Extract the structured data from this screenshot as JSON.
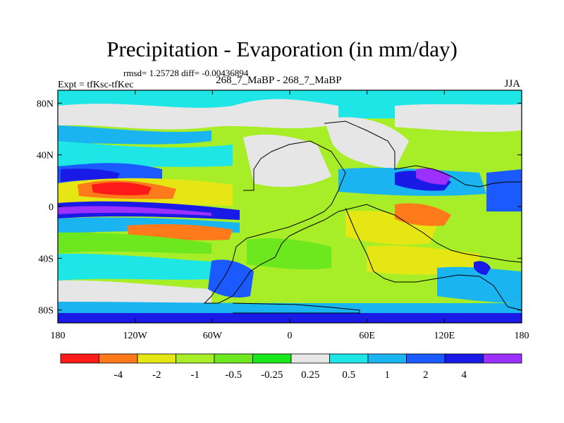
{
  "header": {
    "title": "Precipitation - Evaporation (in mm/day)",
    "stats": "rmsd= 1.25728 diff= -0.00436894",
    "experiment": "Expt = tfKsc-tfKec",
    "period": "268_7_MaBP - 268_7_MaBP",
    "season": "JJA"
  },
  "axes": {
    "x_ticks": [
      {
        "lon": -180,
        "label": "180"
      },
      {
        "lon": -120,
        "label": "120W"
      },
      {
        "lon": -60,
        "label": "60W"
      },
      {
        "lon": 0,
        "label": "0"
      },
      {
        "lon": 60,
        "label": "60E"
      },
      {
        "lon": 120,
        "label": "120E"
      },
      {
        "lon": 180,
        "label": "180"
      }
    ],
    "y_ticks": [
      {
        "lat": 80,
        "label": "80N"
      },
      {
        "lat": 40,
        "label": "40N"
      },
      {
        "lat": 0,
        "label": "0"
      },
      {
        "lat": -40,
        "label": "40S"
      },
      {
        "lat": -80,
        "label": "80S"
      }
    ],
    "lon_range": [
      -180,
      180
    ],
    "lat_range": [
      -90,
      90
    ]
  },
  "colorbar": {
    "colors": [
      "#ff1a1a",
      "#ff7a1a",
      "#e6e614",
      "#a8ee28",
      "#6ee81e",
      "#1ae81a",
      "#e6e6e6",
      "#1ee6e6",
      "#1ab4f0",
      "#1a5aff",
      "#1a1ae6",
      "#9b30ff"
    ],
    "labels": [
      "-4",
      "-2",
      "-1",
      "-0.5",
      "-0.25",
      "0.25",
      "0.5",
      "1",
      "2",
      "4"
    ]
  }
}
